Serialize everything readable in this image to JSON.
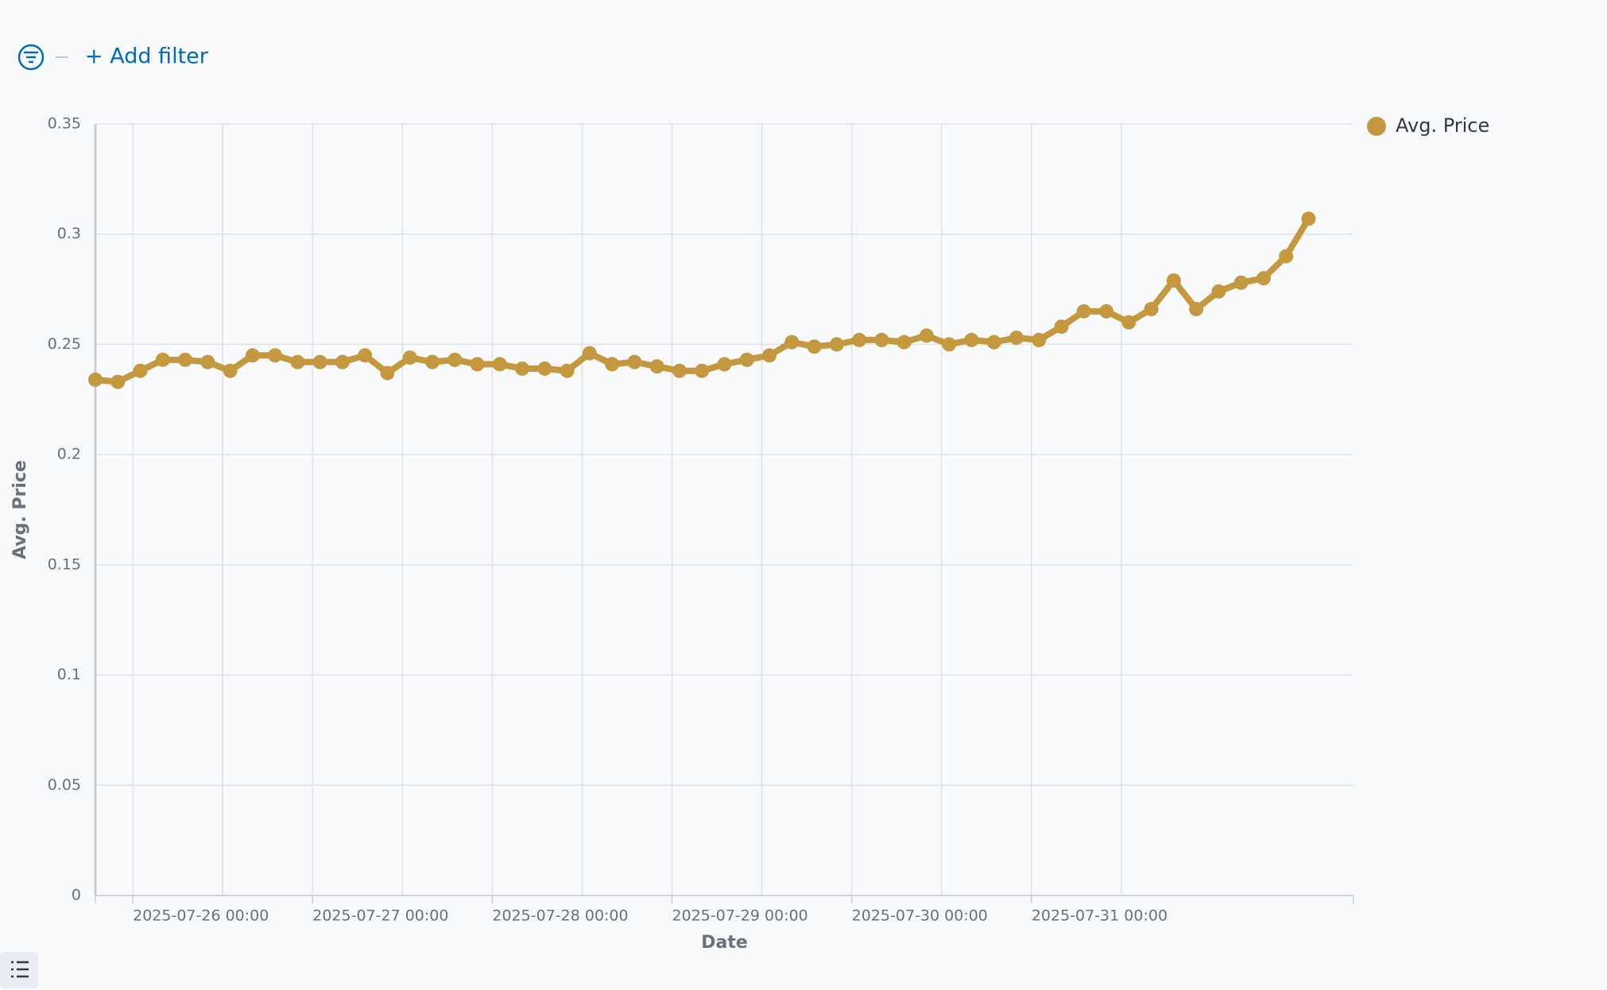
{
  "filter_bar": {
    "add_filter": "+ Add filter"
  },
  "chart_data": {
    "type": "line",
    "x_label": "Date",
    "y_label": "Avg. Price",
    "x": [
      "2025-07-25 19:00",
      "2025-07-25 22:00",
      "2025-07-26 01:00",
      "2025-07-26 04:00",
      "2025-07-26 07:00",
      "2025-07-26 10:00",
      "2025-07-26 13:00",
      "2025-07-26 16:00",
      "2025-07-26 19:00",
      "2025-07-26 22:00",
      "2025-07-27 01:00",
      "2025-07-27 04:00",
      "2025-07-27 07:00",
      "2025-07-27 10:00",
      "2025-07-27 13:00",
      "2025-07-27 16:00",
      "2025-07-27 19:00",
      "2025-07-27 22:00",
      "2025-07-28 01:00",
      "2025-07-28 04:00",
      "2025-07-28 07:00",
      "2025-07-28 10:00",
      "2025-07-28 13:00",
      "2025-07-28 16:00",
      "2025-07-28 19:00",
      "2025-07-28 22:00",
      "2025-07-29 01:00",
      "2025-07-29 04:00",
      "2025-07-29 07:00",
      "2025-07-29 10:00",
      "2025-07-29 13:00",
      "2025-07-29 16:00",
      "2025-07-29 19:00",
      "2025-07-29 22:00",
      "2025-07-30 01:00",
      "2025-07-30 04:00",
      "2025-07-30 07:00",
      "2025-07-30 10:00",
      "2025-07-30 13:00",
      "2025-07-30 16:00",
      "2025-07-30 19:00",
      "2025-07-30 22:00",
      "2025-07-31 01:00",
      "2025-07-31 04:00",
      "2025-07-31 07:00",
      "2025-07-31 10:00",
      "2025-07-31 13:00",
      "2025-07-31 16:00",
      "2025-07-31 19:00",
      "2025-07-31 22:00",
      "2025-08-01 01:00",
      "2025-08-01 04:00",
      "2025-08-01 07:00",
      "2025-08-01 10:00",
      "2025-08-01 13:00"
    ],
    "series": [
      {
        "name": "Avg. Price",
        "color": "#c4983f",
        "values": [
          0.234,
          0.233,
          0.238,
          0.243,
          0.243,
          0.242,
          0.238,
          0.245,
          0.245,
          0.242,
          0.242,
          0.242,
          0.245,
          0.237,
          0.244,
          0.242,
          0.243,
          0.241,
          0.241,
          0.239,
          0.239,
          0.238,
          0.246,
          0.241,
          0.242,
          0.24,
          0.238,
          0.238,
          0.241,
          0.243,
          0.245,
          0.251,
          0.249,
          0.25,
          0.252,
          0.252,
          0.251,
          0.254,
          0.25,
          0.252,
          0.251,
          0.253,
          0.252,
          0.258,
          0.265,
          0.265,
          0.26,
          0.266,
          0.279,
          0.266,
          0.274,
          0.278,
          0.28,
          0.29,
          0.307
        ]
      }
    ],
    "xlim": [
      "2025-07-25 19:00",
      "2025-08-01 19:00"
    ],
    "xticks": [
      "2025-07-26 00:00",
      "2025-07-27 00:00",
      "2025-07-28 00:00",
      "2025-07-29 00:00",
      "2025-07-30 00:00",
      "2025-07-31 00:00"
    ],
    "ylim": [
      0,
      0.35
    ],
    "yticks": [
      0,
      0.05,
      0.1,
      0.15,
      0.2,
      0.25,
      0.3,
      0.35
    ],
    "grid": true,
    "legend": "top-right"
  }
}
